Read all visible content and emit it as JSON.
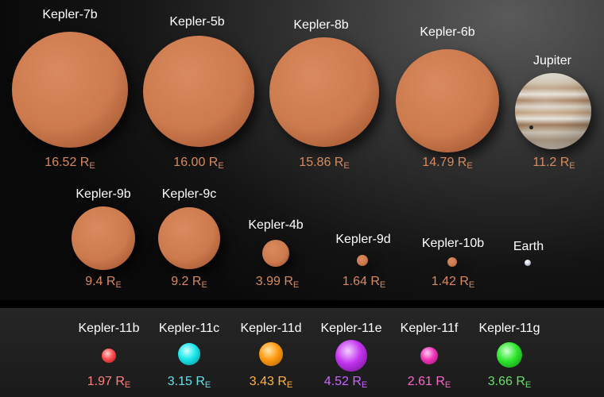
{
  "unit_subscript": "E",
  "top_row": [
    {
      "name": "Kepler-7b",
      "radius": "16.52 R",
      "color": "#d98a5e"
    },
    {
      "name": "Kepler-5b",
      "radius": "16.00 R",
      "color": "#d98a5e"
    },
    {
      "name": "Kepler-8b",
      "radius": "15.86 R",
      "color": "#d98a5e"
    },
    {
      "name": "Kepler-6b",
      "radius": "14.79 R",
      "color": "#d98a5e"
    },
    {
      "name": "Jupiter",
      "radius": "11.2 R",
      "color": "#d98a5e"
    }
  ],
  "middle_row": [
    {
      "name": "Kepler-9b",
      "radius": "9.4 R",
      "color": "#d98a5e"
    },
    {
      "name": "Kepler-9c",
      "radius": "9.2 R",
      "color": "#d98a5e"
    },
    {
      "name": "Kepler-4b",
      "radius": "3.99 R",
      "color": "#d98a5e"
    },
    {
      "name": "Kepler-9d",
      "radius": "1.64 R",
      "color": "#d98a5e"
    },
    {
      "name": "Kepler-10b",
      "radius": "1.42 R",
      "color": "#d98a5e"
    },
    {
      "name": "Earth",
      "radius": "",
      "color": "#ffffff"
    }
  ],
  "bottom_row": [
    {
      "name": "Kepler-11b",
      "radius": "1.97 R",
      "color": "#ff8080",
      "ball": "#ff4d4d"
    },
    {
      "name": "Kepler-11c",
      "radius": "3.15 R",
      "color": "#66e0e6",
      "ball": "#19e6ea"
    },
    {
      "name": "Kepler-11d",
      "radius": "3.43 R",
      "color": "#ffb340",
      "ball": "#ff9a10"
    },
    {
      "name": "Kepler-11e",
      "radius": "4.52 R",
      "color": "#cc66ff",
      "ball": "#c233f0"
    },
    {
      "name": "Kepler-11f",
      "radius": "2.61 R",
      "color": "#ff66cc",
      "ball": "#f035b8"
    },
    {
      "name": "Kepler-11g",
      "radius": "3.66 R",
      "color": "#66e066",
      "ball": "#2ee62e"
    }
  ]
}
